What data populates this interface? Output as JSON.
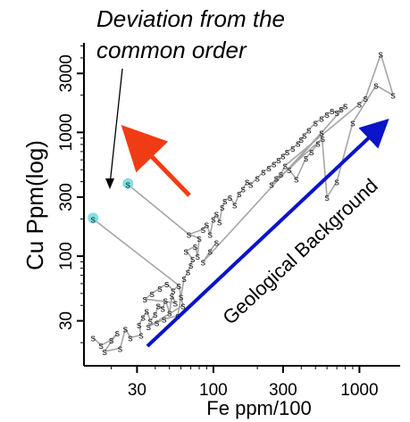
{
  "chart_data": {
    "type": "scatter",
    "title": "",
    "xlabel": "Fe ppm/100",
    "ylabel": "Cu Ppm(log)",
    "x_scale": "log",
    "y_scale": "log",
    "xlim": [
      13,
      1900
    ],
    "ylim": [
      13,
      5300
    ],
    "x_ticks": [
      30,
      100,
      300,
      1000
    ],
    "x_tick_labels": [
      "30",
      "100",
      "300",
      "1000"
    ],
    "y_ticks": [
      30,
      100,
      300,
      1000,
      3000
    ],
    "y_tick_labels": [
      "30",
      "100",
      "300",
      "1000",
      "3000"
    ],
    "point_symbol": "s",
    "grid": false,
    "legend": "none",
    "series": [
      {
        "points": [
          {
            "x": 15,
            "y": 22
          },
          {
            "x": 17,
            "y": 19
          },
          {
            "x": 20,
            "y": 21
          },
          {
            "x": 22,
            "y": 24
          },
          {
            "x": 18,
            "y": 17
          },
          {
            "x": 23,
            "y": 18
          },
          {
            "x": 25,
            "y": 26
          },
          {
            "x": 27,
            "y": 22
          },
          {
            "x": 32,
            "y": 23
          },
          {
            "x": 31,
            "y": 28
          },
          {
            "x": 33,
            "y": 32
          },
          {
            "x": 35,
            "y": 36
          },
          {
            "x": 37,
            "y": 30
          },
          {
            "x": 40,
            "y": 34
          },
          {
            "x": 42,
            "y": 40
          },
          {
            "x": 45,
            "y": 38
          },
          {
            "x": 47,
            "y": 44
          },
          {
            "x": 50,
            "y": 35
          },
          {
            "x": 52,
            "y": 48
          },
          {
            "x": 55,
            "y": 42
          },
          {
            "x": 34,
            "y": 45
          },
          {
            "x": 38,
            "y": 50
          },
          {
            "x": 43,
            "y": 55
          },
          {
            "x": 48,
            "y": 60
          },
          {
            "x": 53,
            "y": 53
          },
          {
            "x": 58,
            "y": 58
          },
          {
            "x": 60,
            "y": 47
          },
          {
            "x": 62,
            "y": 40
          },
          {
            "x": 36,
            "y": 27
          },
          {
            "x": 41,
            "y": 29
          },
          {
            "x": 46,
            "y": 31
          },
          {
            "x": 57,
            "y": 33
          },
          {
            "x": 63,
            "y": 66
          },
          {
            "x": 67,
            "y": 75
          },
          {
            "x": 70,
            "y": 85
          },
          {
            "x": 72,
            "y": 95
          },
          {
            "x": 65,
            "y": 110
          },
          {
            "x": 75,
            "y": 120
          },
          {
            "x": 78,
            "y": 100
          },
          {
            "x": 80,
            "y": 140
          },
          {
            "x": 68,
            "y": 150
          },
          {
            "x": 85,
            "y": 165
          },
          {
            "x": 90,
            "y": 180
          },
          {
            "x": 95,
            "y": 150
          },
          {
            "x": 100,
            "y": 200
          },
          {
            "x": 105,
            "y": 220
          },
          {
            "x": 110,
            "y": 190
          },
          {
            "x": 115,
            "y": 250
          },
          {
            "x": 120,
            "y": 280
          },
          {
            "x": 130,
            "y": 300
          },
          {
            "x": 140,
            "y": 260
          },
          {
            "x": 150,
            "y": 320
          },
          {
            "x": 160,
            "y": 350
          },
          {
            "x": 170,
            "y": 400
          },
          {
            "x": 180,
            "y": 380
          },
          {
            "x": 200,
            "y": 430
          },
          {
            "x": 220,
            "y": 480
          },
          {
            "x": 240,
            "y": 520
          },
          {
            "x": 260,
            "y": 560
          },
          {
            "x": 280,
            "y": 600
          },
          {
            "x": 300,
            "y": 650
          },
          {
            "x": 320,
            "y": 700
          },
          {
            "x": 350,
            "y": 750
          },
          {
            "x": 380,
            "y": 820
          },
          {
            "x": 400,
            "y": 880
          },
          {
            "x": 420,
            "y": 950
          },
          {
            "x": 450,
            "y": 1050
          },
          {
            "x": 500,
            "y": 1200
          },
          {
            "x": 550,
            "y": 1300
          },
          {
            "x": 600,
            "y": 1400
          },
          {
            "x": 650,
            "y": 1500
          },
          {
            "x": 700,
            "y": 1450
          },
          {
            "x": 750,
            "y": 1550
          },
          {
            "x": 800,
            "y": 1650
          },
          {
            "x": 330,
            "y": 500
          },
          {
            "x": 370,
            "y": 420
          },
          {
            "x": 430,
            "y": 620
          },
          {
            "x": 470,
            "y": 700
          },
          {
            "x": 520,
            "y": 820
          },
          {
            "x": 560,
            "y": 900
          },
          {
            "x": 250,
            "y": 380
          },
          {
            "x": 270,
            "y": 430
          },
          {
            "x": 290,
            "y": 460
          },
          {
            "x": 310,
            "y": 540
          },
          {
            "x": 1000,
            "y": 1700
          },
          {
            "x": 1100,
            "y": 1900
          },
          {
            "x": 1400,
            "y": 4300
          },
          {
            "x": 1700,
            "y": 2000
          },
          {
            "x": 1300,
            "y": 2400
          },
          {
            "x": 900,
            "y": 1200
          },
          {
            "x": 700,
            "y": 400
          },
          {
            "x": 600,
            "y": 300
          },
          {
            "x": 550,
            "y": 1000
          },
          {
            "x": 85,
            "y": 90
          },
          {
            "x": 95,
            "y": 110
          },
          {
            "x": 105,
            "y": 130
          }
        ]
      }
    ],
    "highlighted_points": [
      {
        "x": 15,
        "y": 200
      },
      {
        "x": 26,
        "y": 380
      }
    ],
    "annotations": [
      {
        "text": "Deviation from the common order"
      },
      {
        "text": "Geological Background"
      }
    ],
    "colors": {
      "line": "#a6a6a6",
      "points": "#222222",
      "highlight": "#7fe0e6",
      "red_arrow": "#f03c14",
      "blue_arrow": "#0a14c8"
    }
  }
}
